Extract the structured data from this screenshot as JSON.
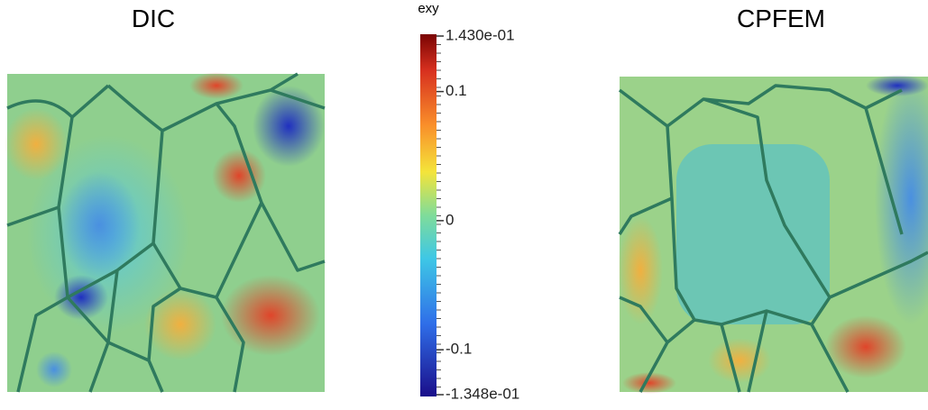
{
  "panels": [
    {
      "title": "DIC"
    },
    {
      "title": "CPFEM"
    }
  ],
  "colorbar": {
    "label": "exy",
    "lim": [
      -0.1348,
      0.143
    ],
    "ticks": [
      {
        "value": 0.143,
        "label": "1.430e-01"
      },
      0.1,
      0,
      -0.1,
      {
        "value": -0.1348,
        "label": "-1.348e-01"
      }
    ]
  }
}
